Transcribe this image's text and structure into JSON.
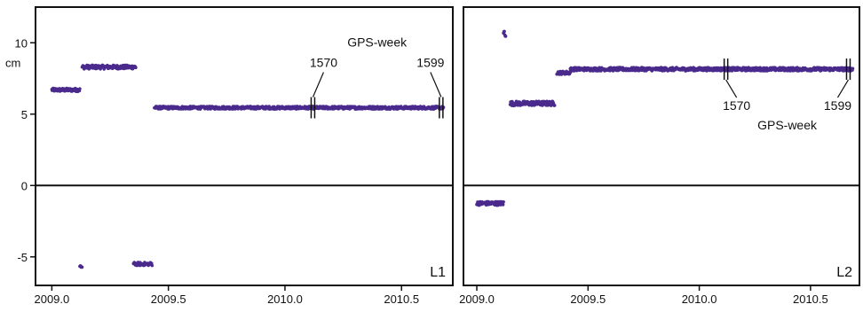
{
  "colors": {
    "points": "#4a2a8c",
    "axes": "#111111",
    "background": "#ffffff"
  },
  "chart_data": [
    {
      "type": "scatter",
      "panel_label": "L1",
      "ylabel": "cm",
      "xlim": [
        2008.93,
        2010.72
      ],
      "ylim": [
        -7,
        12.5
      ],
      "x_ticks": [
        "2009.0",
        "2009.5",
        "2010.0",
        "2010.5"
      ],
      "y_ticks": [
        "10",
        "5",
        "0",
        "-5"
      ],
      "zero_line": true,
      "segments": [
        {
          "x_start": 2009.0,
          "x_end": 2009.12,
          "y": 6.7,
          "spread": 0.12
        },
        {
          "x_start": 2009.13,
          "x_end": 2009.36,
          "y": 8.3,
          "spread": 0.14
        },
        {
          "x_start": 2009.44,
          "x_end": 2010.68,
          "y": 5.45,
          "spread": 0.1
        },
        {
          "x_start": 2009.12,
          "x_end": 2009.13,
          "y": -5.7,
          "spread": 0.08
        },
        {
          "x_start": 2009.35,
          "x_end": 2009.43,
          "y": -5.5,
          "spread": 0.12
        }
      ],
      "annotation": {
        "title": "GPS-week",
        "weeks": [
          {
            "label": "1570",
            "x": 2010.12
          },
          {
            "label": "1599",
            "x": 2010.67
          }
        ],
        "position": "above"
      }
    },
    {
      "type": "scatter",
      "panel_label": "L2",
      "ylabel": "",
      "xlim": [
        2008.94,
        2010.72
      ],
      "ylim": [
        -7,
        12.5
      ],
      "x_ticks": [
        "2009.0",
        "2009.5",
        "2010.0",
        "2010.5"
      ],
      "y_ticks": [],
      "zero_line": true,
      "segments": [
        {
          "x_start": 2009.0,
          "x_end": 2009.12,
          "y": -1.25,
          "spread": 0.14
        },
        {
          "x_start": 2009.12,
          "x_end": 2009.13,
          "y": 10.7,
          "spread": 0.3
        },
        {
          "x_start": 2009.15,
          "x_end": 2009.35,
          "y": 5.75,
          "spread": 0.16
        },
        {
          "x_start": 2009.36,
          "x_end": 2009.42,
          "y": 7.9,
          "spread": 0.12
        },
        {
          "x_start": 2009.42,
          "x_end": 2010.69,
          "y": 8.15,
          "spread": 0.12
        }
      ],
      "annotation": {
        "title": "GPS-week",
        "weeks": [
          {
            "label": "1570",
            "x": 2010.12
          },
          {
            "label": "1599",
            "x": 2010.67
          }
        ],
        "position": "below"
      }
    }
  ]
}
